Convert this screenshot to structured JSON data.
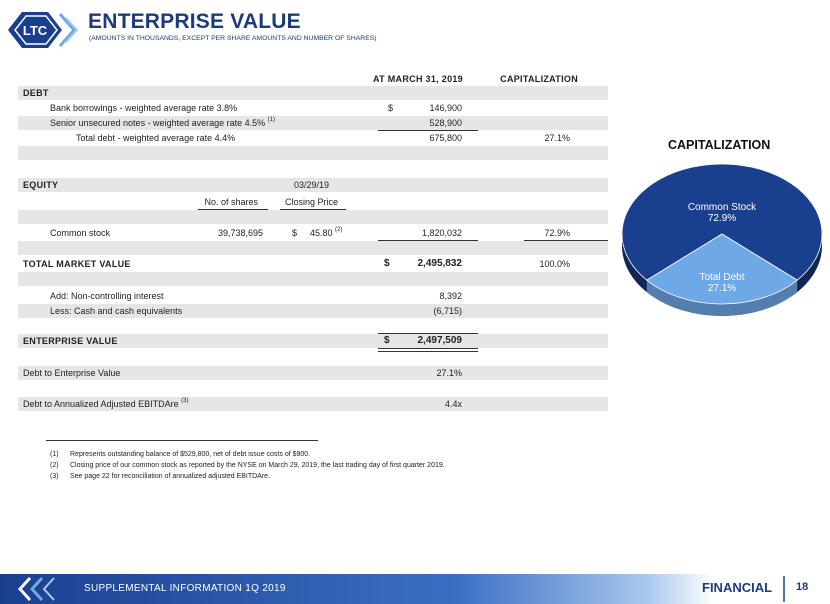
{
  "header": {
    "logo_text": "LTC",
    "title": "ENTERPRISE VALUE",
    "subtitle": "(AMOUNTS IN THOUSANDS, EXCEPT PER SHARE AMOUNTS AND NUMBER OF SHARES)"
  },
  "table": {
    "col_date": "AT MARCH 31, 2019",
    "col_cap": "CAPITALIZATION",
    "debt_label": "DEBT",
    "bank_label": "Bank borrowings - weighted average rate 3.8%",
    "bank_dollar": "$",
    "bank_value": "146,900",
    "senior_label": "Senior unsecured notes - weighted average rate 4.5%",
    "senior_note": "(1)",
    "senior_value": "528,900",
    "total_debt_label": "Total debt - weighted average rate 4.4%",
    "total_debt_value": "675,800",
    "total_debt_pct": "27.1%",
    "equity_label": "EQUITY",
    "equity_date": "03/29/19",
    "shares_label": "No. of shares",
    "price_label": "Closing Price",
    "common_label": "Common stock",
    "common_shares": "39,738,695",
    "common_price_dollar": "$",
    "common_price": "45.80",
    "common_price_note": "(2)",
    "common_value": "1,820,032",
    "common_pct": "72.9%",
    "tmv_label": "TOTAL MARKET VALUE",
    "tmv_dollar": "$",
    "tmv_value": "2,495,832",
    "tmv_pct": "100.0%",
    "nci_label": "Add:  Non-controlling interest",
    "nci_value": "8,392",
    "cash_label": "Less:  Cash and cash equivalents",
    "cash_value": "(6,715)",
    "ev_label": "ENTERPRISE VALUE",
    "ev_dollar": "$",
    "ev_value": "2,497,509",
    "d2ev_label": "Debt to Enterprise Value",
    "d2ev_value": "27.1%",
    "d2e_label": "Debt to Annualized Adjusted EBITDAre",
    "d2e_note": "(3)",
    "d2e_value": "4.4x"
  },
  "chart_data": {
    "type": "pie",
    "title": "CAPITALIZATION",
    "categories": [
      "Common Stock",
      "Total Debt"
    ],
    "values": [
      72.9,
      27.1
    ],
    "labels": [
      "72.9%",
      "27.1%"
    ],
    "colors": [
      "#1b3f8f",
      "#6fa8e6"
    ]
  },
  "footnotes": [
    {
      "num": "(1)",
      "text": "Represents outstanding balance of $529,800, net of debt issue costs of $900."
    },
    {
      "num": "(2)",
      "text": "Closing price of our common stock as reported by the NYSE on March 29, 2019, the last trading day of first quarter 2019."
    },
    {
      "num": "(3)",
      "text": "See page 22 for reconciliation of annualized adjusted EBITDAre."
    }
  ],
  "footer": {
    "text": "SUPPLEMENTAL INFORMATION  1Q 2019",
    "section": "FINANCIAL",
    "page": "18"
  }
}
